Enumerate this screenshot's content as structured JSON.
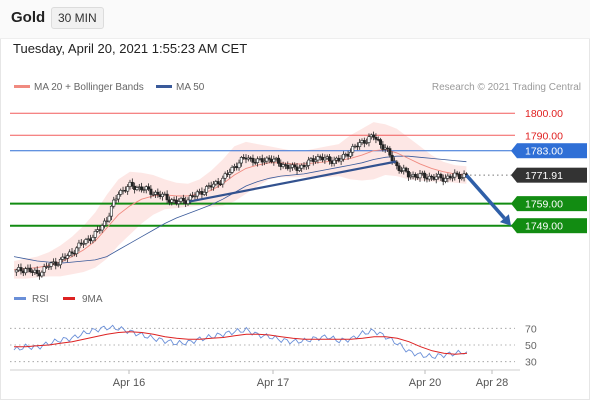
{
  "header": {
    "symbol": "Gold",
    "timeframe": "30 MIN",
    "timestamp": "Tuesday, April 20, 2021 1:55:23 AM CET"
  },
  "colors": {
    "ma20": "#f08a80",
    "bollinger_fill": "#fde3e1",
    "ma50": "#3a5a9a",
    "trendline": "#33528f",
    "arrow": "#2f5fa8",
    "resistance": "#f25c5c",
    "resistance_label": "#e02020",
    "pivot": "#2f6fd6",
    "support": "#128c12",
    "current_price": "#333333",
    "rsi": "#6a8fd8",
    "rsi_9ma": "#dd2222",
    "candle_up": "#ffffff",
    "candle_down": "#222222"
  },
  "chart_data": [
    {
      "type": "line",
      "title": "",
      "legend": [
        {
          "label": "MA 20 + Bollinger Bands",
          "color": "#f08a80"
        },
        {
          "label": "MA 50",
          "color": "#3a5a9a"
        }
      ],
      "legend_position": "top-left",
      "credit": "Research © 2021 Trading Central",
      "x_ticks": [
        "Apr 16",
        "Apr 17",
        "Apr 20",
        "Apr 28"
      ],
      "ylim": [
        1728,
        1806
      ],
      "levels": [
        {
          "label": "1800.00",
          "value": 1800.0,
          "kind": "resistance"
        },
        {
          "label": "1790.00",
          "value": 1790.0,
          "kind": "resistance"
        },
        {
          "label": "1783.00",
          "value": 1783.0,
          "kind": "pivot"
        },
        {
          "label": "1771.91",
          "value": 1771.91,
          "kind": "current"
        },
        {
          "label": "1759.00",
          "value": 1759.0,
          "kind": "support"
        },
        {
          "label": "1749.00",
          "value": 1749.0,
          "kind": "support"
        }
      ],
      "price_path": [
        1728,
        1729.5,
        1727,
        1731,
        1733,
        1737,
        1741.5,
        1745,
        1752,
        1764,
        1767,
        1766,
        1764,
        1762,
        1759.5,
        1761,
        1764,
        1767,
        1770,
        1776,
        1780,
        1778,
        1779.5,
        1777,
        1775,
        1776,
        1780,
        1779,
        1778.5,
        1783,
        1787,
        1789.5,
        1784,
        1776,
        1772,
        1771.5,
        1771,
        1770.5,
        1771.5,
        1771.91
      ],
      "ma20": [
        1729,
        1729.5,
        1730,
        1731,
        1732.5,
        1735,
        1738,
        1742,
        1748,
        1754,
        1758,
        1761,
        1762.5,
        1763,
        1762.5,
        1762.5,
        1763.5,
        1765,
        1768,
        1772,
        1775,
        1776.5,
        1777.5,
        1777.5,
        1777,
        1777,
        1777.5,
        1778,
        1778.5,
        1779.5,
        1781,
        1783,
        1783.5,
        1782,
        1779.5,
        1777,
        1775,
        1773.5,
        1772.5,
        1772
      ],
      "ma50": [
        1735,
        1734,
        1733,
        1732.5,
        1732,
        1732.5,
        1733,
        1733.5,
        1735,
        1738,
        1741,
        1744,
        1747,
        1750,
        1752.5,
        1754.5,
        1756.5,
        1758.5,
        1761,
        1764,
        1767,
        1769,
        1770.5,
        1771.5,
        1772,
        1772.5,
        1773.5,
        1774.5,
        1775.5,
        1776.5,
        1777.5,
        1779,
        1780,
        1780.5,
        1780.5,
        1780,
        1779.5,
        1779,
        1778.5,
        1778
      ],
      "bollinger_upper": [
        1733,
        1734,
        1735,
        1737,
        1740,
        1744,
        1749,
        1755,
        1763,
        1770,
        1773.5,
        1773,
        1772,
        1770,
        1768.5,
        1768,
        1770,
        1774,
        1779,
        1785,
        1787,
        1786,
        1785,
        1784,
        1783,
        1783,
        1784,
        1785,
        1786,
        1790,
        1793,
        1796,
        1795,
        1793,
        1789,
        1785,
        1781,
        1778,
        1776.5,
        1776
      ],
      "bollinger_lower": [
        1725,
        1725,
        1725.5,
        1726,
        1726,
        1727,
        1728,
        1730,
        1734,
        1740,
        1745,
        1750,
        1754,
        1756.5,
        1757,
        1757.5,
        1758,
        1757.5,
        1758,
        1760,
        1763.5,
        1767,
        1770,
        1771,
        1771,
        1771,
        1771,
        1771,
        1771.5,
        1770,
        1769.5,
        1770,
        1772,
        1771.5,
        1770,
        1769.5,
        1769,
        1769,
        1768.5,
        1768
      ],
      "trendline": [
        {
          "i": 23,
          "y": 1760
        },
        {
          "i": 49,
          "y": 1778
        }
      ],
      "projection_arrow": {
        "from": 1771.91,
        "to": 1749.0
      }
    },
    {
      "type": "line",
      "title": "",
      "legend": [
        {
          "label": "RSI",
          "color": "#6a8fd8"
        },
        {
          "label": "9MA",
          "color": "#dd2222"
        }
      ],
      "legend_position": "top-left",
      "ylim": [
        20,
        80
      ],
      "y_ticks": [
        "70",
        "50",
        "30"
      ],
      "reference_lines": [
        70,
        50,
        30
      ],
      "rsi": [
        44,
        48,
        47,
        52,
        56,
        58,
        64,
        68,
        71,
        70,
        66,
        62,
        58,
        55,
        52,
        53,
        57,
        60,
        63,
        66,
        68,
        62,
        60,
        56,
        54,
        55,
        58,
        60,
        55,
        57,
        64,
        67,
        60,
        52,
        42,
        38,
        36,
        38,
        40,
        42
      ],
      "rsi_9ma": [
        48,
        48,
        49,
        50,
        52,
        54,
        57,
        60,
        63,
        65,
        66,
        65,
        63,
        60,
        58,
        57,
        57,
        58,
        59,
        61,
        63,
        63,
        62,
        60,
        58,
        57,
        57,
        57,
        57,
        57,
        58,
        60,
        60,
        58,
        54,
        48,
        43,
        40,
        39,
        40
      ]
    }
  ]
}
